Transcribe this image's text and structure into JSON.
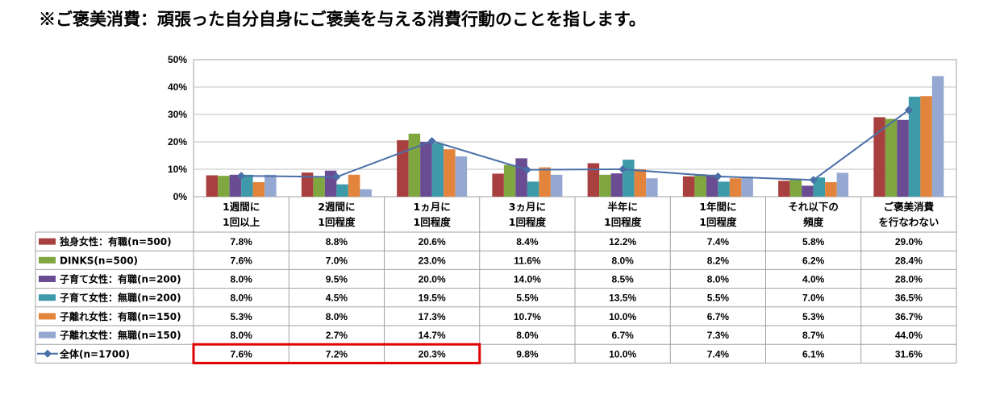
{
  "headline": "※ご褒美消費：頑張った自分自身にご褒美を与える消費行動のことを指します。",
  "colors": {
    "s1": "#a84040",
    "s2": "#80a640",
    "s3": "#6a4c92",
    "s4": "#3e9aa8",
    "s5": "#e2843c",
    "s6": "#94a8d2",
    "total": "#4a6fa8",
    "grid": "#bfbfbf",
    "highlight": "#e00000"
  },
  "chart_data": {
    "type": "bar",
    "ylim": [
      0,
      50
    ],
    "y_ticks": [
      "0%",
      "10%",
      "20%",
      "30%",
      "40%",
      "50%"
    ],
    "categories": [
      [
        "1週間に",
        "1回以上"
      ],
      [
        "2週間に",
        "1回程度"
      ],
      [
        "1ヵ月に",
        "1回程度"
      ],
      [
        "3ヵ月に",
        "1回程度"
      ],
      [
        "半年に",
        "1回程度"
      ],
      [
        "1年間に",
        "1回程度"
      ],
      [
        "それ以下の",
        "頻度"
      ],
      [
        "ご褒美消費",
        "を行なわない"
      ]
    ],
    "series": [
      {
        "name": "独身女性：有職(n=500)",
        "type": "bar",
        "color_key": "s1",
        "values": [
          7.8,
          8.8,
          20.6,
          8.4,
          12.2,
          7.4,
          5.8,
          29.0
        ]
      },
      {
        "name": "DINKS(n=500)",
        "type": "bar",
        "color_key": "s2",
        "values": [
          7.6,
          7.0,
          23.0,
          11.6,
          8.0,
          8.2,
          6.2,
          28.4
        ]
      },
      {
        "name": "子育て女性：有職(n=200)",
        "type": "bar",
        "color_key": "s3",
        "values": [
          8.0,
          9.5,
          20.0,
          14.0,
          8.5,
          8.0,
          4.0,
          28.0
        ]
      },
      {
        "name": "子育て女性：無職(n=200)",
        "type": "bar",
        "color_key": "s4",
        "values": [
          8.0,
          4.5,
          19.5,
          5.5,
          13.5,
          5.5,
          7.0,
          36.5
        ]
      },
      {
        "name": "子離れ女性：有職(n=150)",
        "type": "bar",
        "color_key": "s5",
        "values": [
          5.3,
          8.0,
          17.3,
          10.7,
          10.0,
          6.7,
          5.3,
          36.7
        ]
      },
      {
        "name": "子離れ女性：無職(n=150)",
        "type": "bar",
        "color_key": "s6",
        "values": [
          8.0,
          2.7,
          14.7,
          8.0,
          6.7,
          7.3,
          8.7,
          44.0
        ]
      },
      {
        "name": "全体(n=1700)",
        "type": "line",
        "color_key": "total",
        "values": [
          7.6,
          7.2,
          20.3,
          9.8,
          10.0,
          7.4,
          6.1,
          31.6
        ]
      }
    ],
    "highlighted_cells": {
      "series_index": 6,
      "category_indices": [
        0,
        1,
        2
      ]
    },
    "grid": true,
    "legend": "data table"
  }
}
